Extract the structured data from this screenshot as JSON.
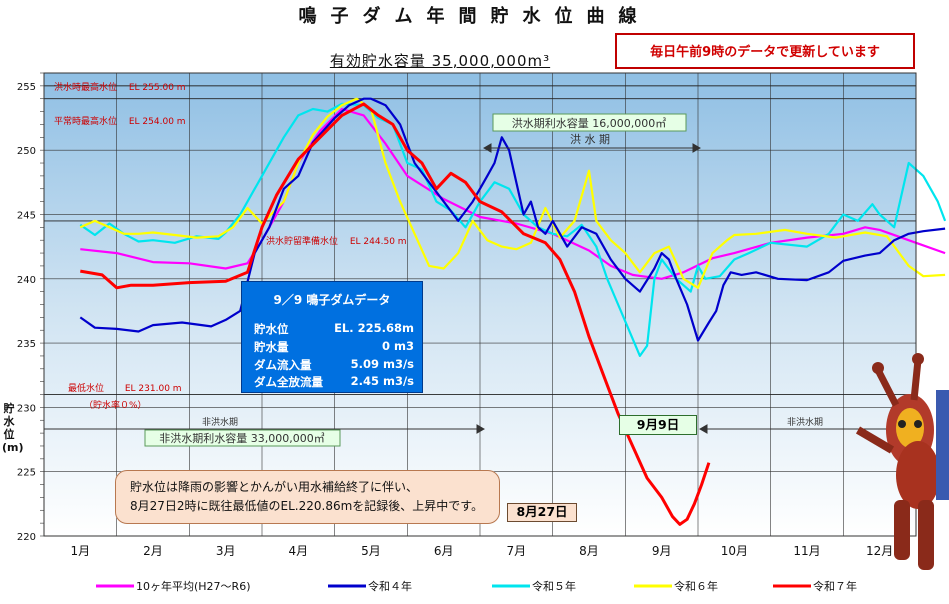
{
  "title": "鳴子ダム年間貯水位曲線",
  "subtitle": "有効貯水容量 35,000,000m³",
  "update_note": "毎日午前9時のデータで更新しています",
  "y_axis_label": [
    "貯",
    "水",
    "位",
    "(m)"
  ],
  "annotations": {
    "flood_max": "洪水時最高水位　 EL 255.00 m",
    "normal_max": "平常時最高水位　 EL 254.00 m",
    "flood_reserve": "洪水貯留準備水位　 EL 244.50 m",
    "min_level": "最低水位　　 EL 231.00 m",
    "min_level_sub": "（貯水率０%）",
    "flood_capacity": "洪水期利水容量 16,000,000㎥",
    "flood_period": "洪 水 期",
    "nonflood_period_left": "非洪水期",
    "nonflood_period_right": "非洪水期",
    "nonflood_capacity": "非洪水期利水容量 33,000,000㎥",
    "tag_sep9": "9月9日",
    "tag_aug27": "8月27日"
  },
  "info_box": {
    "title": "9／9 鳴子ダムデータ",
    "rows": [
      {
        "k": "貯水位",
        "v": "EL. 225.68m"
      },
      {
        "k": "貯水量",
        "v": "0 m3"
      },
      {
        "k": "ダム流入量",
        "v": "5.09 m3/s"
      },
      {
        "k": "ダム全放流量",
        "v": "2.45 m3/s"
      }
    ]
  },
  "note": {
    "line1": "貯水位は降雨の影響とかんがい用水補給終了に伴い、",
    "line2": "8月27日2時に既往最低値のEL.220.86mを記録後、上昇中です。"
  },
  "colors": {
    "avg": "#ff00ff",
    "r4": "#0000cc",
    "r5": "#00e5ee",
    "r6": "#ffff00",
    "r7": "#ff0000",
    "annotation_red": "#cc0000",
    "annotation_green": "#1a7a1a"
  },
  "chart_data": {
    "type": "line",
    "categories": [
      "1月",
      "2月",
      "3月",
      "4月",
      "5月",
      "6月",
      "7月",
      "8月",
      "9月",
      "10月",
      "11月",
      "12月"
    ],
    "ylim": [
      220,
      256
    ],
    "yticks": [
      220,
      225,
      230,
      235,
      240,
      245,
      250,
      255
    ],
    "hlines": [
      255,
      254,
      244.5,
      231
    ],
    "legend_position": "bottom",
    "grid": true,
    "series": [
      {
        "name": "10ヶ年平均(H27〜R6)",
        "key": "avg",
        "points": [
          [
            0,
            242.3
          ],
          [
            0.5,
            242
          ],
          [
            1,
            241.3
          ],
          [
            1.5,
            241.2
          ],
          [
            2,
            240.8
          ],
          [
            2.3,
            241.2
          ],
          [
            2.5,
            243
          ],
          [
            2.8,
            246
          ],
          [
            3,
            249
          ],
          [
            3.3,
            251.5
          ],
          [
            3.6,
            253.2
          ],
          [
            3.9,
            252.7
          ],
          [
            4.2,
            250.5
          ],
          [
            4.5,
            248
          ],
          [
            5,
            246.2
          ],
          [
            5.5,
            244.8
          ],
          [
            6,
            244.3
          ],
          [
            6.5,
            243.5
          ],
          [
            7,
            242.2
          ],
          [
            7.3,
            241
          ],
          [
            7.6,
            240.3
          ],
          [
            8,
            240
          ],
          [
            8.3,
            240.5
          ],
          [
            8.7,
            241.6
          ],
          [
            9,
            242
          ],
          [
            9.5,
            242.8
          ],
          [
            10,
            243.2
          ],
          [
            10.5,
            243.5
          ],
          [
            10.8,
            244
          ],
          [
            11,
            243.8
          ],
          [
            11.5,
            242.8
          ],
          [
            11.9,
            242
          ]
        ]
      },
      {
        "name": "令和４年",
        "key": "r4",
        "points": [
          [
            0,
            237
          ],
          [
            0.2,
            236.2
          ],
          [
            0.5,
            236.1
          ],
          [
            0.8,
            235.9
          ],
          [
            1,
            236.4
          ],
          [
            1.4,
            236.6
          ],
          [
            1.8,
            236.3
          ],
          [
            2,
            236.8
          ],
          [
            2.2,
            237.5
          ],
          [
            2.4,
            242
          ],
          [
            2.6,
            244
          ],
          [
            2.8,
            247
          ],
          [
            3,
            248
          ],
          [
            3.2,
            250.6
          ],
          [
            3.5,
            252.5
          ],
          [
            3.7,
            253.5
          ],
          [
            3.9,
            254
          ],
          [
            4,
            254
          ],
          [
            4.2,
            253.5
          ],
          [
            4.4,
            252
          ],
          [
            4.6,
            249
          ],
          [
            4.8,
            247.5
          ],
          [
            5,
            246
          ],
          [
            5.2,
            244.5
          ],
          [
            5.4,
            246
          ],
          [
            5.6,
            248
          ],
          [
            5.7,
            249
          ],
          [
            5.8,
            251
          ],
          [
            5.9,
            250
          ],
          [
            6,
            247.5
          ],
          [
            6.1,
            245
          ],
          [
            6.2,
            246
          ],
          [
            6.3,
            244
          ],
          [
            6.4,
            243.5
          ],
          [
            6.5,
            244.5
          ],
          [
            6.7,
            242.5
          ],
          [
            6.9,
            244
          ],
          [
            7.1,
            243.5
          ],
          [
            7.3,
            241.5
          ],
          [
            7.5,
            240
          ],
          [
            7.7,
            239
          ],
          [
            7.9,
            240.8
          ],
          [
            8,
            242
          ],
          [
            8.1,
            241.5
          ],
          [
            8.2,
            240
          ],
          [
            8.35,
            238
          ],
          [
            8.5,
            235.2
          ],
          [
            8.65,
            236.6
          ],
          [
            8.75,
            237.5
          ],
          [
            8.85,
            239.5
          ],
          [
            8.95,
            240.5
          ],
          [
            9.1,
            240.3
          ],
          [
            9.3,
            240.5
          ],
          [
            9.6,
            240
          ],
          [
            10,
            239.9
          ],
          [
            10.3,
            240.5
          ],
          [
            10.5,
            241.4
          ],
          [
            10.8,
            241.8
          ],
          [
            11,
            242
          ],
          [
            11.2,
            243
          ],
          [
            11.4,
            243.5
          ],
          [
            11.6,
            243.7
          ],
          [
            11.9,
            243.9
          ]
        ]
      },
      {
        "name": "令和５年",
        "key": "r5",
        "points": [
          [
            0,
            244.2
          ],
          [
            0.2,
            243.4
          ],
          [
            0.4,
            244.3
          ],
          [
            0.6,
            243.5
          ],
          [
            0.8,
            242.9
          ],
          [
            1,
            243
          ],
          [
            1.3,
            242.8
          ],
          [
            1.6,
            243.3
          ],
          [
            1.9,
            243.1
          ],
          [
            2,
            243.6
          ],
          [
            2.2,
            245
          ],
          [
            2.5,
            248
          ],
          [
            2.8,
            251
          ],
          [
            3,
            252.7
          ],
          [
            3.2,
            253.2
          ],
          [
            3.4,
            253
          ],
          [
            3.6,
            253.6
          ],
          [
            3.9,
            253.5
          ],
          [
            4.1,
            252.5
          ],
          [
            4.3,
            252
          ],
          [
            4.5,
            249
          ],
          [
            4.7,
            248.5
          ],
          [
            4.9,
            246
          ],
          [
            5.1,
            245.3
          ],
          [
            5.3,
            244
          ],
          [
            5.5,
            246
          ],
          [
            5.7,
            247.5
          ],
          [
            5.9,
            247
          ],
          [
            6.1,
            245
          ],
          [
            6.3,
            244
          ],
          [
            6.5,
            243.5
          ],
          [
            6.7,
            243.3
          ],
          [
            6.9,
            244.2
          ],
          [
            7.1,
            242.5
          ],
          [
            7.25,
            240
          ],
          [
            7.4,
            238
          ],
          [
            7.55,
            236
          ],
          [
            7.7,
            234
          ],
          [
            7.8,
            234.8
          ],
          [
            7.9,
            240
          ],
          [
            8,
            241.5
          ],
          [
            8.2,
            240
          ],
          [
            8.4,
            239
          ],
          [
            8.5,
            241
          ],
          [
            8.6,
            240
          ],
          [
            8.8,
            240.2
          ],
          [
            9,
            241.5
          ],
          [
            9.2,
            242
          ],
          [
            9.5,
            242.8
          ],
          [
            10,
            242.5
          ],
          [
            10.3,
            243.5
          ],
          [
            10.5,
            245
          ],
          [
            10.7,
            244.5
          ],
          [
            10.9,
            245.8
          ],
          [
            11,
            245
          ],
          [
            11.2,
            244
          ],
          [
            11.4,
            249
          ],
          [
            11.6,
            248
          ],
          [
            11.8,
            246
          ],
          [
            11.9,
            244.5
          ]
        ]
      },
      {
        "name": "令和６年",
        "key": "r6",
        "points": [
          [
            0,
            244
          ],
          [
            0.2,
            244.5
          ],
          [
            0.4,
            244
          ],
          [
            0.6,
            243.5
          ],
          [
            0.8,
            243.5
          ],
          [
            1,
            243.6
          ],
          [
            1.3,
            243.4
          ],
          [
            1.6,
            243.2
          ],
          [
            1.9,
            243.3
          ],
          [
            2.1,
            244
          ],
          [
            2.3,
            245.5
          ],
          [
            2.5,
            244.3
          ],
          [
            2.8,
            246
          ],
          [
            3,
            249
          ],
          [
            3.2,
            251.2
          ],
          [
            3.4,
            252.6
          ],
          [
            3.6,
            253.5
          ],
          [
            3.8,
            254
          ],
          [
            4,
            253.2
          ],
          [
            4.2,
            249
          ],
          [
            4.4,
            246
          ],
          [
            4.6,
            243.5
          ],
          [
            4.8,
            241
          ],
          [
            5,
            240.8
          ],
          [
            5.2,
            242
          ],
          [
            5.4,
            244.5
          ],
          [
            5.6,
            243
          ],
          [
            5.8,
            242.5
          ],
          [
            6,
            242.3
          ],
          [
            6.2,
            242.8
          ],
          [
            6.4,
            245.5
          ],
          [
            6.6,
            243.2
          ],
          [
            6.8,
            244.5
          ],
          [
            7,
            248.4
          ],
          [
            7.1,
            244.5
          ],
          [
            7.3,
            243
          ],
          [
            7.5,
            242
          ],
          [
            7.7,
            240.5
          ],
          [
            7.9,
            242
          ],
          [
            8.1,
            242.5
          ],
          [
            8.3,
            240
          ],
          [
            8.5,
            239.3
          ],
          [
            8.7,
            242
          ],
          [
            8.9,
            243
          ],
          [
            9,
            243.4
          ],
          [
            9.3,
            243.5
          ],
          [
            9.7,
            243.8
          ],
          [
            10,
            243.5
          ],
          [
            10.4,
            243.2
          ],
          [
            10.8,
            243.6
          ],
          [
            11.1,
            243.3
          ],
          [
            11.4,
            241
          ],
          [
            11.6,
            240.2
          ],
          [
            11.9,
            240.3
          ]
        ]
      },
      {
        "name": "令和７年",
        "key": "r7",
        "points": [
          [
            0,
            240.6
          ],
          [
            0.3,
            240.3
          ],
          [
            0.5,
            239.3
          ],
          [
            0.7,
            239.5
          ],
          [
            1,
            239.5
          ],
          [
            1.5,
            239.7
          ],
          [
            2,
            239.8
          ],
          [
            2.3,
            240.5
          ],
          [
            2.5,
            244
          ],
          [
            2.7,
            246.5
          ],
          [
            3,
            249.3
          ],
          [
            3.3,
            251
          ],
          [
            3.6,
            252.7
          ],
          [
            3.9,
            253.6
          ],
          [
            4.1,
            252.7
          ],
          [
            4.3,
            252
          ],
          [
            4.5,
            250
          ],
          [
            4.7,
            249
          ],
          [
            4.9,
            247
          ],
          [
            5.1,
            248.2
          ],
          [
            5.3,
            247.5
          ],
          [
            5.5,
            246
          ],
          [
            5.8,
            245.2
          ],
          [
            6.1,
            243.5
          ],
          [
            6.4,
            242.8
          ],
          [
            6.6,
            241.5
          ],
          [
            6.8,
            239
          ],
          [
            7,
            235.5
          ],
          [
            7.2,
            232.5
          ],
          [
            7.4,
            229.5
          ],
          [
            7.6,
            227
          ],
          [
            7.8,
            224.5
          ],
          [
            8,
            223
          ],
          [
            8.15,
            221.5
          ],
          [
            8.25,
            220.9
          ],
          [
            8.35,
            221.3
          ],
          [
            8.45,
            222.5
          ],
          [
            8.55,
            224
          ],
          [
            8.65,
            225.7
          ]
        ]
      }
    ]
  },
  "legend": [
    {
      "key": "avg",
      "label": "10ヶ年平均(H27〜R6)"
    },
    {
      "key": "r4",
      "label": "令和４年"
    },
    {
      "key": "r5",
      "label": "令和５年"
    },
    {
      "key": "r6",
      "label": "令和６年"
    },
    {
      "key": "r7",
      "label": "令和７年"
    }
  ]
}
